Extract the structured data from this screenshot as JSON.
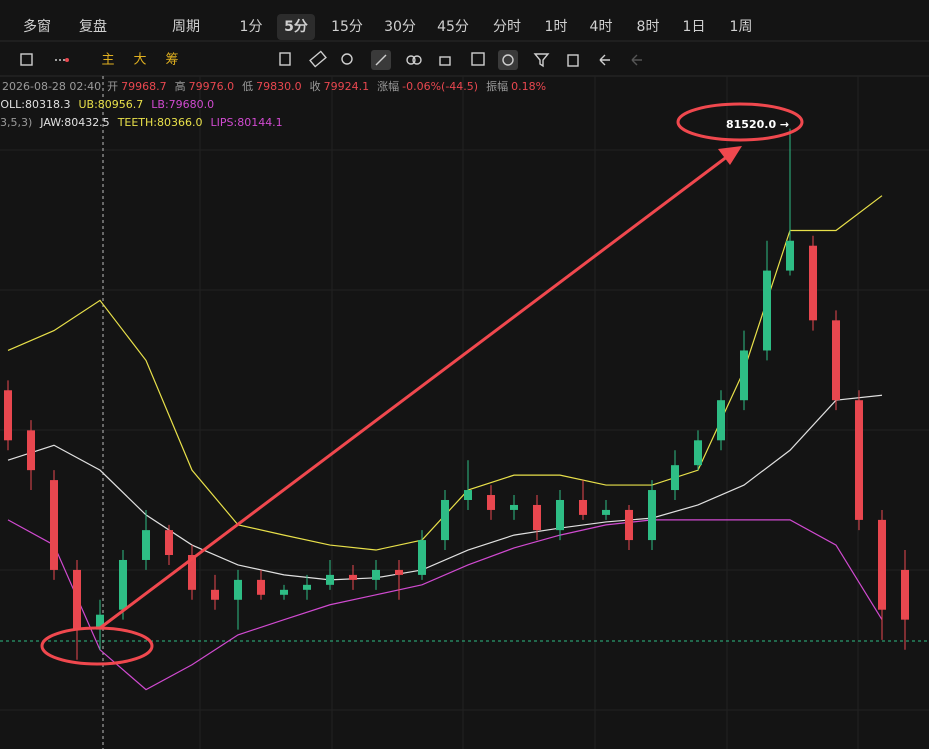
{
  "toolbar": {
    "items": [
      "多窗",
      "复盘",
      "周期",
      "1分",
      "5分",
      "15分",
      "30分",
      "45分",
      "分时",
      "1时",
      "4时",
      "8时",
      "1日",
      "1周"
    ],
    "active_index": 4
  },
  "tools": {
    "labels": [
      "主",
      "大",
      "筹"
    ]
  },
  "info": {
    "datetime": "2026-08-28 02:40",
    "fields": [
      {
        "label": "开",
        "value": "79968.7"
      },
      {
        "label": "高",
        "value": "79976.0"
      },
      {
        "label": "低",
        "value": "79830.0"
      },
      {
        "label": "收",
        "value": "79924.1"
      },
      {
        "label": "涨幅",
        "value": "-0.06%(-44.5)"
      },
      {
        "label": "振幅",
        "value": "0.18%"
      }
    ]
  },
  "indicators": {
    "boll": [
      {
        "text": "BOLL:80318.3",
        "color": "#e0e0e0"
      },
      {
        "text": "UB:80956.7",
        "color": "#e8e04a"
      },
      {
        "text": "LB:79680.0",
        "color": "#d04ad0"
      }
    ],
    "alligator_params": "3,5,3)",
    "alligator": [
      {
        "text": "JAW:80432.5",
        "color": "#e0e0e0"
      },
      {
        "text": "TEETH:80366.0",
        "color": "#e8e04a"
      },
      {
        "text": "LIPS:80144.1",
        "color": "#d04ad0"
      }
    ]
  },
  "chart_data": {
    "type": "candlestick",
    "ylim": [
      79400,
      81700
    ],
    "up_color": "#2ebd85",
    "down_color": "#e8474f",
    "open": [
      80626,
      80489,
      80319,
      80012,
      79808,
      79876,
      80046,
      80148,
      80063,
      79944,
      79910,
      79978,
      79927,
      79944,
      79961,
      79995,
      79978,
      80012,
      79995,
      80114,
      80251,
      80268,
      80217,
      80234,
      80148,
      80251,
      80200,
      80217,
      80114,
      80285,
      80370,
      80455,
      80592,
      80762,
      81035,
      81120,
      80865,
      80592,
      80183,
      80012
    ],
    "high": [
      80660,
      80524,
      80353,
      80046,
      79910,
      80080,
      80217,
      80166,
      80097,
      79995,
      80012,
      80012,
      79961,
      79995,
      80046,
      80029,
      80046,
      80046,
      80148,
      80285,
      80387,
      80302,
      80268,
      80268,
      80285,
      80319,
      80251,
      80234,
      80319,
      80421,
      80489,
      80626,
      80830,
      81137,
      81520,
      81154,
      80899,
      80626,
      80217,
      80080
    ],
    "low": [
      80421,
      80285,
      79978,
      79705,
      79739,
      79842,
      80012,
      80029,
      79910,
      79876,
      79808,
      79910,
      79910,
      79910,
      79944,
      79944,
      79944,
      79910,
      79978,
      80080,
      80217,
      80183,
      80183,
      80114,
      80114,
      80183,
      80183,
      80080,
      80080,
      80251,
      80353,
      80421,
      80558,
      80728,
      81018,
      80830,
      80558,
      80148,
      79773,
      79739
    ],
    "close": [
      80455,
      80353,
      80012,
      79808,
      79859,
      80046,
      80148,
      80063,
      79944,
      79910,
      79978,
      79927,
      79944,
      79961,
      79995,
      79978,
      80012,
      79995,
      80114,
      80251,
      80285,
      80217,
      80234,
      80148,
      80251,
      80200,
      80217,
      80114,
      80285,
      80370,
      80455,
      80592,
      80762,
      81035,
      81137,
      80865,
      80592,
      80183,
      79876,
      79842
    ],
    "series": [
      {
        "color": "#e8e04a",
        "x": [
          0,
          2,
          4,
          6,
          8,
          10,
          12,
          14,
          16,
          18,
          20,
          22,
          24,
          26,
          28,
          30,
          32,
          34,
          36,
          38
        ],
        "values": [
          80762,
          80830,
          80933,
          80728,
          80353,
          80166,
          80131,
          80097,
          80080,
          80114,
          80285,
          80336,
          80336,
          80302,
          80302,
          80353,
          80694,
          81172,
          81172,
          81291
        ]
      },
      {
        "color": "#e0e0e0",
        "x": [
          0,
          2,
          4,
          6,
          8,
          10,
          12,
          14,
          16,
          18,
          20,
          22,
          24,
          26,
          28,
          30,
          32,
          34,
          36,
          38
        ],
        "values": [
          80387,
          80438,
          80353,
          80200,
          80097,
          80029,
          79995,
          79978,
          79985,
          80012,
          80080,
          80131,
          80155,
          80176,
          80189,
          80234,
          80302,
          80421,
          80592,
          80609
        ]
      },
      {
        "color": "#d04ad0",
        "x": [
          0,
          2,
          4,
          6,
          8,
          10,
          12,
          14,
          16,
          18,
          20,
          22,
          24,
          26,
          28,
          30,
          32,
          34,
          36,
          38
        ],
        "values": [
          80183,
          80097,
          79739,
          79603,
          79688,
          79790,
          79842,
          79893,
          79927,
          79961,
          80029,
          80087,
          80131,
          80166,
          80183,
          80183,
          80183,
          80183,
          80097,
          79842
        ]
      }
    ],
    "high_label": "81520.0 →"
  }
}
